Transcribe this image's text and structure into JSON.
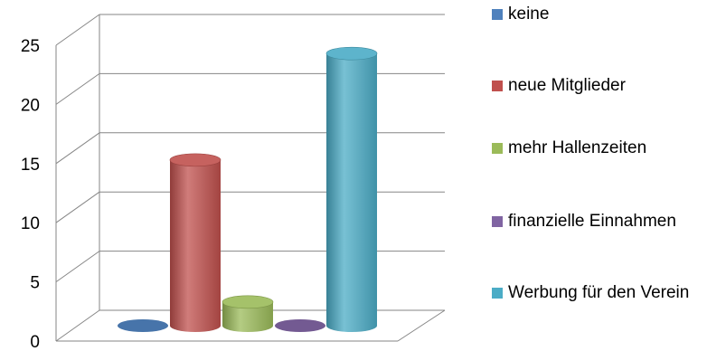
{
  "chart_data": {
    "type": "bar",
    "title": "",
    "xlabel": "",
    "ylabel": "",
    "ylim": [
      0,
      25
    ],
    "yticks": [
      0,
      5,
      10,
      15,
      20,
      25
    ],
    "grid": true,
    "legend_position": "right",
    "series": [
      {
        "name": "keine",
        "values": [
          0
        ],
        "color": "#4f81bd"
      },
      {
        "name": "neue Mitglieder",
        "values": [
          14
        ],
        "color": "#c0504d"
      },
      {
        "name": "mehr Hallenzeiten",
        "values": [
          2
        ],
        "color": "#9bbb59"
      },
      {
        "name": "finanzielle Einnahmen",
        "values": [
          0
        ],
        "color": "#8064a2"
      },
      {
        "name": "Werbung für den Verein",
        "values": [
          23
        ],
        "color": "#4bacc6"
      }
    ]
  }
}
